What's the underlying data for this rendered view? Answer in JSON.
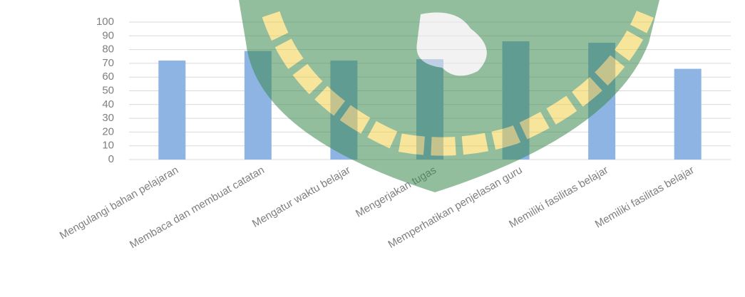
{
  "chart_data": {
    "type": "bar",
    "categories": [
      "Mengulangi bahan pelajaran",
      "Membaca dan membuat catatan",
      "Mengatur waktu belajar",
      "Mengerjakan tugas",
      "Memperhatikan penjelasan guru",
      "Memiliki fasilitas belajar",
      "Memiliki fasilitas belajar"
    ],
    "values": [
      72,
      79,
      72,
      73,
      86,
      85,
      66
    ],
    "color": "#8db4e2",
    "ylim": [
      0,
      100
    ],
    "yticks": [
      0,
      10,
      20,
      30,
      40,
      50,
      60,
      70,
      80,
      90,
      100
    ],
    "grid": true
  }
}
